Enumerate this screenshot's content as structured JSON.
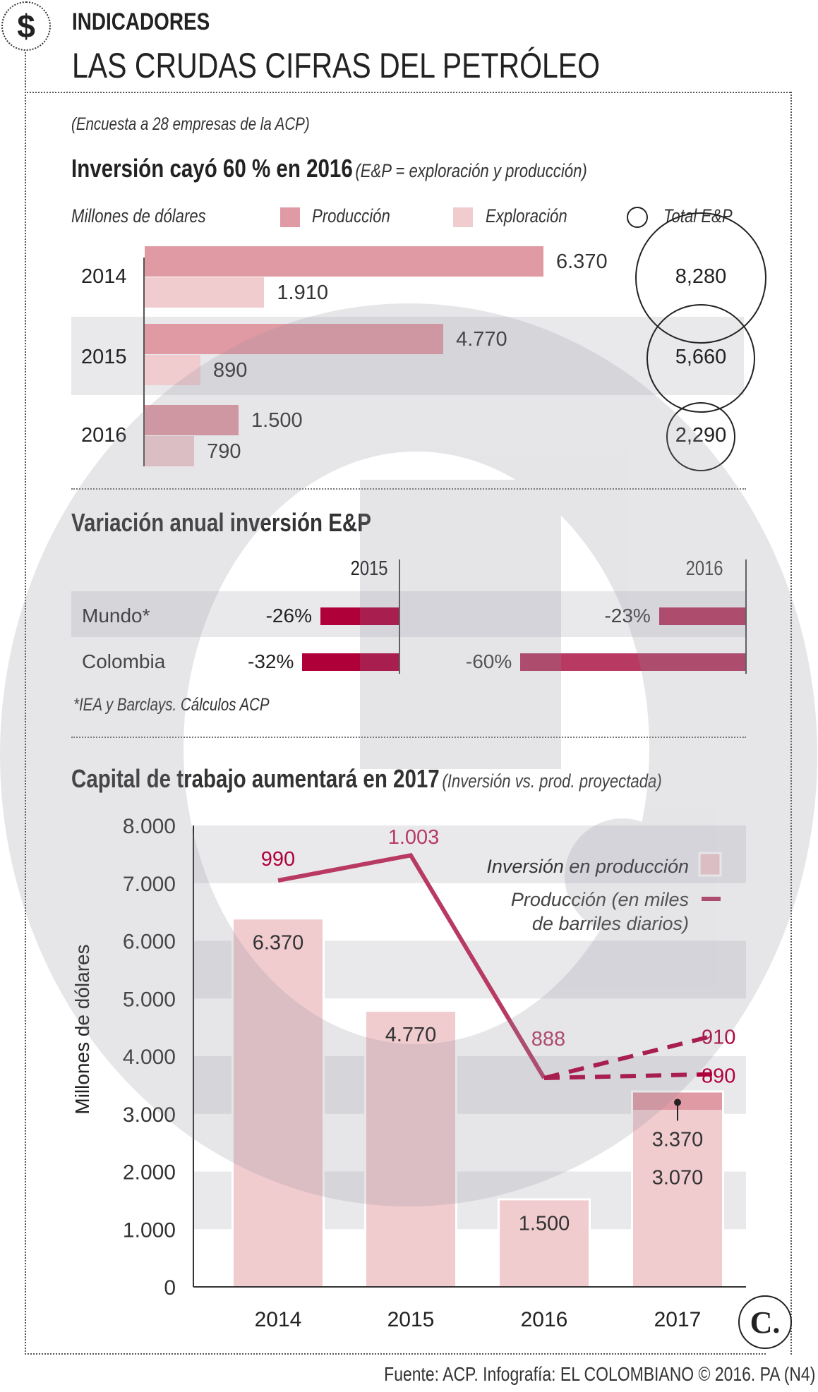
{
  "header": {
    "icon": "dollar-icon",
    "kicker": "INDICADORES",
    "title": "LAS CRUDAS CIFRAS DEL PETRÓLEO"
  },
  "survey_note": "(Encuesta a 28 empresas de la ACP)",
  "colors": {
    "production": "#e09aa3",
    "exploration": "#f0cccf",
    "crimson": "#b0003a",
    "crimson_light": "#b83a62",
    "band": "#e9e9ec",
    "line": "#b83a62"
  },
  "chart_data": [
    {
      "type": "bar",
      "orientation": "horizontal",
      "title": "Inversión cayó 60 % en 2016",
      "subtitle": "(E&P = exploración y producción)",
      "unit_label": "Millones de dólares",
      "categories": [
        "2014",
        "2015",
        "2016"
      ],
      "series": [
        {
          "name": "Producción",
          "values": [
            6370,
            4770,
            1500
          ],
          "labels": [
            "6.370",
            "4.770",
            "1.500"
          ]
        },
        {
          "name": "Exploración",
          "values": [
            1910,
            890,
            790
          ],
          "labels": [
            "1.910",
            "890",
            "790"
          ]
        }
      ],
      "totals": {
        "name": "Total E&P",
        "values": [
          8280,
          5660,
          2290
        ],
        "labels": [
          "8,280",
          "5,660",
          "2,290"
        ]
      }
    },
    {
      "type": "bar",
      "orientation": "horizontal",
      "title": "Variación anual inversión E&P",
      "columns": [
        "2015",
        "2016"
      ],
      "rows": [
        {
          "label": "Mundo*",
          "values": [
            -26,
            -23
          ],
          "labels": [
            "-26%",
            "-23%"
          ]
        },
        {
          "label": "Colombia",
          "values": [
            -32,
            -60
          ],
          "labels": [
            "-32%",
            "-60%"
          ]
        }
      ],
      "footnote": "*IEA y Barclays. Cálculos ACP"
    },
    {
      "type": "bar",
      "title": "Capital de trabajo aumentará en 2017",
      "subtitle": "(Inversión vs. prod. proyectada)",
      "ylabel": "Millones de dólares",
      "ylim": [
        0,
        8000
      ],
      "yticks": [
        "0",
        "1.000",
        "2.000",
        "3.000",
        "4.000",
        "5.000",
        "6.000",
        "7.000",
        "8.000"
      ],
      "categories": [
        "2014",
        "2015",
        "2016",
        "2017"
      ],
      "bars": {
        "name": "Inversión en producción",
        "values": [
          6370,
          4770,
          1500,
          3370
        ],
        "labels": [
          "6.370",
          "4.770",
          "1.500",
          "3.370"
        ],
        "extra_2017": {
          "value": 3070,
          "label": "3.070"
        }
      },
      "line": {
        "name": "Producción (en miles de barriles diarios)",
        "name_line1": "Producción (en miles",
        "name_line2": "de barriles diarios)",
        "values": [
          990,
          1003,
          888
        ],
        "labels": [
          "990",
          "1.003",
          "888"
        ],
        "projection_2017": [
          910,
          890
        ],
        "projection_labels": [
          "910",
          "890"
        ]
      },
      "grid": "alternating bands",
      "legend": "top-right"
    }
  ],
  "footer": {
    "source": "Fuente: ACP. Infografía: EL COLOMBIANO © 2016. PA (N4)",
    "logo": "C."
  }
}
